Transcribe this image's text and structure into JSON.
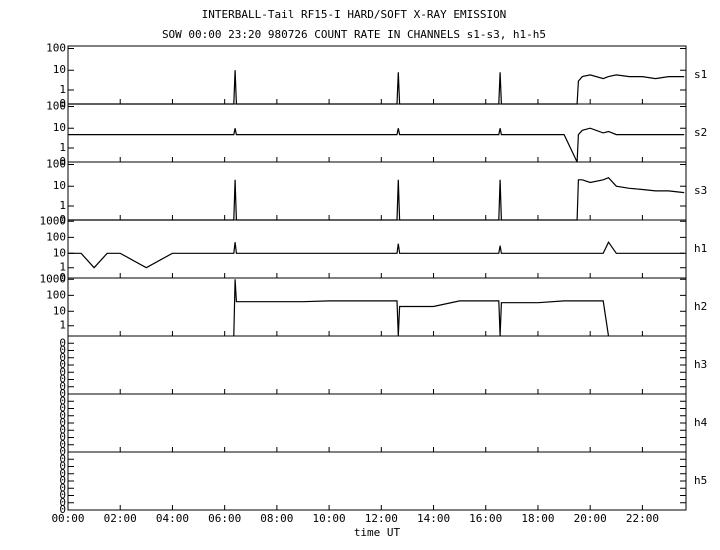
{
  "chart_data": {
    "type": "line",
    "title": "INTERBALL-Tail RF15-I HARD/SOFT X-RAY EMISSION",
    "subtitle": "SOW 00:00 23:20 980726  COUNT RATE IN CHANNELS s1-s3, h1-h5",
    "xlabel": "time UT",
    "color": "#000000",
    "yscale": "log",
    "x": [
      0,
      0.5,
      1,
      1.5,
      2,
      3,
      4,
      5,
      6,
      6.35,
      6.4,
      6.45,
      7,
      8,
      9,
      10,
      11,
      12,
      12.6,
      12.65,
      12.7,
      13,
      14,
      15,
      16,
      16.5,
      16.55,
      16.6,
      17,
      18,
      19,
      19.5,
      19.55,
      19.7,
      20,
      20.5,
      20.7,
      21,
      21.5,
      22,
      22.5,
      23,
      23.6
    ],
    "xlim": [
      0,
      23.67
    ],
    "xticks": [
      {
        "value": 0,
        "label": "00:00"
      },
      {
        "value": 2,
        "label": "02:00"
      },
      {
        "value": 4,
        "label": "04:00"
      },
      {
        "value": 6,
        "label": "06:00"
      },
      {
        "value": 8,
        "label": "08:00"
      },
      {
        "value": 10,
        "label": "10:00"
      },
      {
        "value": 12,
        "label": "12:00"
      },
      {
        "value": 14,
        "label": "14:00"
      },
      {
        "value": 16,
        "label": "16:00"
      },
      {
        "value": 18,
        "label": "18:00"
      },
      {
        "value": 20,
        "label": "20:00"
      },
      {
        "value": 22,
        "label": "22:00"
      }
    ],
    "panels": [
      {
        "label": "s1",
        "ylim": [
          0,
          130
        ],
        "yticks": [
          0,
          1,
          10,
          100
        ],
        "values": [
          0,
          0,
          0,
          0,
          0,
          0,
          0,
          0,
          0,
          0,
          10,
          0,
          0,
          0,
          0,
          0,
          0,
          0,
          0,
          8,
          0,
          0,
          0,
          0,
          0,
          0,
          8,
          0,
          0,
          0,
          0,
          0,
          3,
          5,
          6,
          4,
          5,
          6,
          5,
          5,
          4,
          5,
          5
        ]
      },
      {
        "label": "s2",
        "ylim": [
          0,
          130
        ],
        "yticks": [
          0,
          1,
          10,
          100
        ],
        "values": [
          5,
          5,
          5,
          5,
          5,
          5,
          5,
          5,
          5,
          5,
          10,
          5,
          5,
          5,
          5,
          5,
          5,
          5,
          5,
          10,
          5,
          5,
          5,
          5,
          5,
          5,
          10,
          5,
          5,
          5,
          5,
          0,
          5,
          8,
          10,
          6,
          7,
          5,
          5,
          5,
          5,
          5,
          5
        ]
      },
      {
        "label": "s3",
        "ylim": [
          0,
          130
        ],
        "yticks": [
          0,
          1,
          10,
          100
        ],
        "values": [
          0,
          0,
          0,
          0,
          0,
          0,
          0,
          0,
          0,
          0,
          20,
          0,
          0,
          0,
          0,
          0,
          0,
          0,
          0,
          20,
          0,
          0,
          0,
          0,
          0,
          0,
          20,
          0,
          0,
          0,
          0,
          0,
          20,
          20,
          15,
          20,
          25,
          10,
          8,
          7,
          6,
          6,
          5
        ]
      },
      {
        "label": "h1",
        "ylim": [
          0,
          1200
        ],
        "yticks": [
          0,
          1,
          10,
          100,
          1000
        ],
        "values": [
          10,
          10,
          1,
          10,
          10,
          1,
          10,
          10,
          10,
          10,
          50,
          10,
          10,
          10,
          10,
          10,
          10,
          10,
          10,
          40,
          10,
          10,
          10,
          10,
          10,
          10,
          30,
          10,
          10,
          10,
          10,
          10,
          10,
          10,
          10,
          10,
          50,
          10,
          10,
          10,
          10,
          10,
          10
        ]
      },
      {
        "label": "h2",
        "ylim": [
          0,
          1200
        ],
        "yticks": [
          1,
          10,
          100,
          1000
        ],
        "values": [
          null,
          null,
          null,
          null,
          null,
          null,
          null,
          null,
          null,
          0,
          1000,
          40,
          40,
          40,
          40,
          45,
          45,
          45,
          45,
          0,
          20,
          20,
          20,
          45,
          45,
          45,
          0,
          35,
          35,
          35,
          45,
          45,
          45,
          45,
          45,
          45,
          0,
          null,
          null,
          null,
          null,
          null,
          null
        ]
      },
      {
        "label": "h3",
        "yscale": "linear",
        "ylim": [
          0,
          1
        ],
        "yticks": [
          {
            "value": 0,
            "label": "0"
          },
          {
            "value": 0.125,
            "label": "0"
          },
          {
            "value": 0.25,
            "label": "0"
          },
          {
            "value": 0.375,
            "label": "0"
          },
          {
            "value": 0.5,
            "label": "0"
          },
          {
            "value": 0.625,
            "label": "0"
          },
          {
            "value": 0.75,
            "label": "0"
          },
          {
            "value": 0.875,
            "label": "0"
          }
        ]
      },
      {
        "label": "h4",
        "yscale": "linear",
        "ylim": [
          0,
          1
        ],
        "yticks": [
          {
            "value": 0,
            "label": "0"
          },
          {
            "value": 0.125,
            "label": "0"
          },
          {
            "value": 0.25,
            "label": "0"
          },
          {
            "value": 0.375,
            "label": "0"
          },
          {
            "value": 0.5,
            "label": "0"
          },
          {
            "value": 0.625,
            "label": "0"
          },
          {
            "value": 0.75,
            "label": "0"
          },
          {
            "value": 0.875,
            "label": "0"
          }
        ]
      },
      {
        "label": "h5",
        "yscale": "linear",
        "ylim": [
          0,
          1
        ],
        "yticks": [
          {
            "value": 0,
            "label": "0"
          },
          {
            "value": 0.125,
            "label": "0"
          },
          {
            "value": 0.25,
            "label": "0"
          },
          {
            "value": 0.375,
            "label": "0"
          },
          {
            "value": 0.5,
            "label": "0"
          },
          {
            "value": 0.625,
            "label": "0"
          },
          {
            "value": 0.75,
            "label": "0"
          },
          {
            "value": 0.875,
            "label": "0"
          }
        ]
      }
    ]
  }
}
